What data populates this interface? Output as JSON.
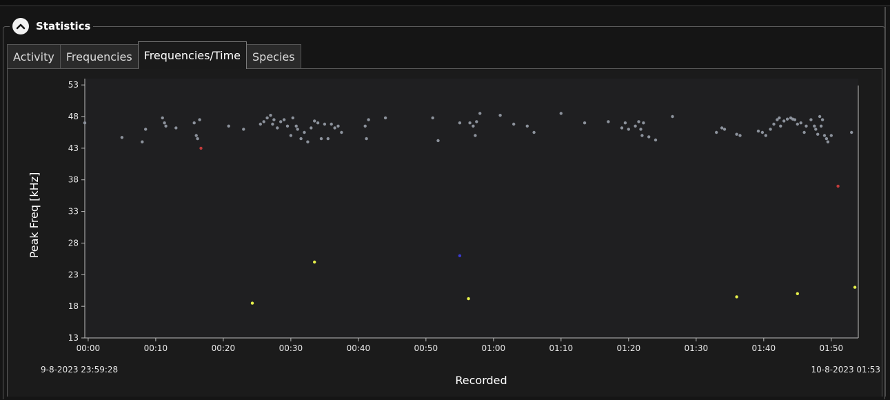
{
  "statistics": {
    "title": "Statistics",
    "collapse_icon": "chevron-up-icon"
  },
  "tabs": [
    {
      "label": "Activity",
      "active": false
    },
    {
      "label": "Frequencies",
      "active": false
    },
    {
      "label": "Frequencies/Time",
      "active": true
    },
    {
      "label": "Species",
      "active": false
    }
  ],
  "chart_data": {
    "type": "scatter",
    "xlabel": "Recorded",
    "ylabel": "Peak Freq [kHz]",
    "ylim": [
      13,
      54
    ],
    "yticks": [
      13,
      18,
      23,
      28,
      33,
      38,
      43,
      48,
      53
    ],
    "xlim": [
      -0.5,
      114
    ],
    "xticks": [
      {
        "x": 0,
        "label": "00:00"
      },
      {
        "x": 10,
        "label": "00:10"
      },
      {
        "x": 20,
        "label": "00:20"
      },
      {
        "x": 30,
        "label": "00:30"
      },
      {
        "x": 40,
        "label": "00:40"
      },
      {
        "x": 50,
        "label": "00:50"
      },
      {
        "x": 60,
        "label": "01:00"
      },
      {
        "x": 70,
        "label": "01:10"
      },
      {
        "x": 80,
        "label": "01:20"
      },
      {
        "x": 90,
        "label": "01:30"
      },
      {
        "x": 100,
        "label": "01:40"
      },
      {
        "x": 110,
        "label": "01:50"
      }
    ],
    "start_label": "9-8-2023 23:59:28",
    "end_label": "10-8-2023 01:53",
    "colors": {
      "grey": "#8c929c",
      "yellow": "#e6f04a",
      "red": "#c23b3b",
      "blue": "#3a3ad0"
    },
    "series": [
      {
        "color": "grey",
        "points": [
          [
            -0.5,
            47
          ],
          [
            5,
            44.7
          ],
          [
            8,
            44
          ],
          [
            8.5,
            46
          ],
          [
            11,
            47.8
          ],
          [
            11.3,
            47
          ],
          [
            11.5,
            46.5
          ],
          [
            13,
            46.2
          ],
          [
            15.7,
            47
          ],
          [
            16,
            45
          ],
          [
            16.2,
            44.5
          ],
          [
            16.5,
            47.5
          ],
          [
            20.8,
            46.5
          ],
          [
            23,
            46
          ],
          [
            25.5,
            46.8
          ],
          [
            26,
            47.2
          ],
          [
            26.5,
            47.8
          ],
          [
            27,
            48.2
          ],
          [
            27.3,
            46.8
          ],
          [
            27.5,
            47.5
          ],
          [
            28,
            46.2
          ],
          [
            28.5,
            47.2
          ],
          [
            29,
            47.5
          ],
          [
            29.5,
            46.5
          ],
          [
            30,
            45
          ],
          [
            30.3,
            47.8
          ],
          [
            30.8,
            46.5
          ],
          [
            31,
            46
          ],
          [
            31.5,
            44.5
          ],
          [
            32,
            45.5
          ],
          [
            32.5,
            44
          ],
          [
            33,
            46.2
          ],
          [
            33.5,
            47.3
          ],
          [
            34,
            47
          ],
          [
            34.5,
            44.5
          ],
          [
            35,
            46.8
          ],
          [
            35.5,
            44.5
          ],
          [
            36,
            46.8
          ],
          [
            36.5,
            46.2
          ],
          [
            37,
            46.5
          ],
          [
            37.5,
            45.5
          ],
          [
            41,
            46.5
          ],
          [
            41.2,
            44.5
          ],
          [
            41.5,
            47.5
          ],
          [
            44,
            47.8
          ],
          [
            51,
            47.8
          ],
          [
            51.8,
            44.2
          ],
          [
            55,
            47
          ],
          [
            56.5,
            47
          ],
          [
            57,
            46.5
          ],
          [
            57.3,
            45
          ],
          [
            57.5,
            47.2
          ],
          [
            58,
            48.5
          ],
          [
            61,
            48.2
          ],
          [
            63,
            46.8
          ],
          [
            65,
            46.5
          ],
          [
            66,
            45.5
          ],
          [
            70,
            48.5
          ],
          [
            73.5,
            47
          ],
          [
            77,
            47.2
          ],
          [
            79,
            46.2
          ],
          [
            79.5,
            47
          ],
          [
            80,
            46
          ],
          [
            81,
            46.5
          ],
          [
            81.5,
            47.2
          ],
          [
            81.8,
            46
          ],
          [
            82,
            45
          ],
          [
            82.2,
            47
          ],
          [
            83,
            44.8
          ],
          [
            84,
            44.3
          ],
          [
            86.5,
            48
          ],
          [
            93,
            45.5
          ],
          [
            93.8,
            46.2
          ],
          [
            94.2,
            46
          ],
          [
            96,
            45.2
          ],
          [
            96.5,
            45
          ],
          [
            99.2,
            45.7
          ],
          [
            99.8,
            45.5
          ],
          [
            100.3,
            45
          ],
          [
            101,
            46
          ],
          [
            101.5,
            46.8
          ],
          [
            102,
            47.5
          ],
          [
            102.3,
            47.8
          ],
          [
            102.5,
            46.5
          ],
          [
            103,
            47.3
          ],
          [
            103.5,
            47.6
          ],
          [
            104,
            47.8
          ],
          [
            104.3,
            47.6
          ],
          [
            104.6,
            47.5
          ],
          [
            105,
            46.8
          ],
          [
            105.5,
            47
          ],
          [
            106,
            45.5
          ],
          [
            106.3,
            46.5
          ],
          [
            107,
            47.5
          ],
          [
            107.5,
            46.5
          ],
          [
            107.7,
            46
          ],
          [
            108,
            45.2
          ],
          [
            108.3,
            48
          ],
          [
            108.5,
            46.5
          ],
          [
            108.7,
            47.5
          ],
          [
            109,
            45
          ],
          [
            109.3,
            44.5
          ],
          [
            109.5,
            44
          ],
          [
            110,
            45
          ],
          [
            113,
            45.5
          ]
        ]
      },
      {
        "color": "yellow",
        "points": [
          [
            24.3,
            18.5
          ],
          [
            33.5,
            25
          ],
          [
            56.3,
            19.2
          ],
          [
            96,
            19.5
          ],
          [
            105,
            20
          ],
          [
            113.5,
            21
          ]
        ]
      },
      {
        "color": "red",
        "points": [
          [
            16.7,
            43
          ],
          [
            111,
            37
          ]
        ]
      },
      {
        "color": "blue",
        "points": [
          [
            55,
            26
          ]
        ]
      }
    ]
  }
}
